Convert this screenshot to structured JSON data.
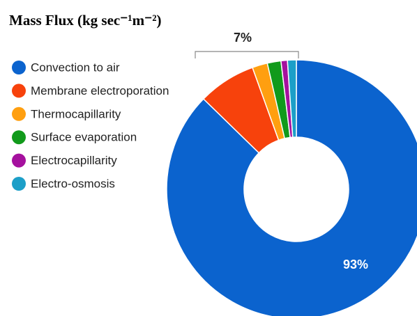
{
  "chart_data": {
    "type": "pie",
    "donut": true,
    "title": "Mass Flux (kg sec⁻¹m⁻²)",
    "categories": [
      "Convection to air",
      "Membrane electroporation",
      "Thermocapillarity",
      "Surface evaporation",
      "Electrocapillarity",
      "Electro-osmosis"
    ],
    "values": [
      87.3,
      7.2,
      1.9,
      1.7,
      0.8,
      1.1
    ],
    "colors": [
      "#0b63ce",
      "#f7420c",
      "#ff9f10",
      "#119a1b",
      "#a5119e",
      "#1c9fc8"
    ],
    "annotations": [
      "7%",
      "93%"
    ],
    "legend": "left"
  }
}
